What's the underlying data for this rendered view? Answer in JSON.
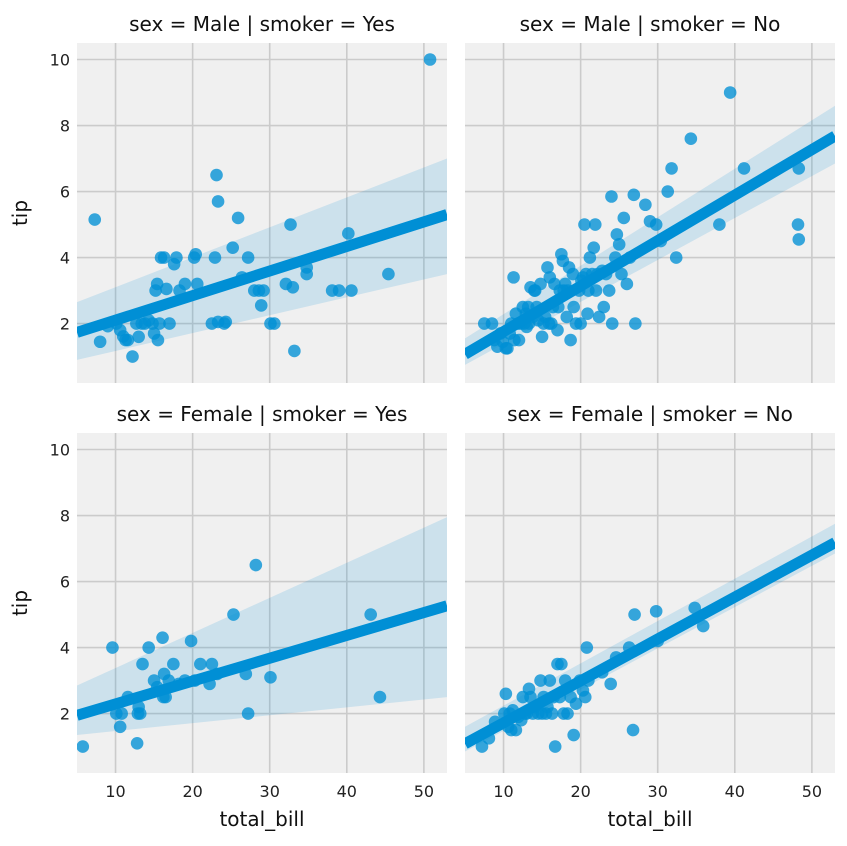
{
  "chart_data": [
    {
      "type": "scatter",
      "title": "sex = Male | smoker = Yes",
      "xlabel": "",
      "ylabel": "tip",
      "xlim": [
        5,
        53
      ],
      "ylim": [
        0.2,
        10.5
      ],
      "xticks": [
        10,
        20,
        30,
        40,
        50
      ],
      "yticks": [
        2,
        4,
        6,
        8,
        10
      ],
      "show_xticklabels": false,
      "show_yticklabels": true,
      "grid": true,
      "regression": {
        "intercept": 1.36,
        "slope": 0.0744,
        "ci_low_start": 0.9,
        "ci_high_start": 2.65,
        "ci_low_end": 3.5,
        "ci_high_end": 7.0
      },
      "series": [
        {
          "x": [
            7.3,
            8.0,
            9.0,
            10.1,
            10.6,
            11.0,
            11.3,
            11.6,
            12.2,
            12.7,
            13.0,
            13.4,
            13.8,
            14.3,
            14.8,
            15.0,
            15.2,
            15.4,
            15.5,
            15.7,
            15.9,
            16.3,
            16.6,
            17.0,
            17.6,
            17.9,
            18.3,
            19.0,
            20.2,
            20.4,
            20.6,
            22.5,
            22.9,
            23.1,
            23.3,
            23.3,
            24.1,
            24.3,
            25.2,
            25.9,
            26.4,
            27.2,
            28.0,
            28.6,
            28.9,
            29.2,
            30.1,
            30.6,
            32.1,
            32.7,
            33.0,
            33.2,
            34.8,
            34.8,
            38.1,
            39.0,
            40.2,
            40.6,
            45.4,
            50.8
          ],
          "y": [
            5.15,
            1.45,
            1.92,
            2.0,
            1.8,
            1.61,
            1.5,
            1.5,
            1.0,
            2.0,
            1.6,
            2.0,
            2.0,
            2.1,
            2.0,
            1.7,
            3.0,
            3.2,
            1.5,
            2.0,
            4.0,
            4.0,
            3.05,
            2.0,
            3.8,
            4.0,
            3.0,
            3.2,
            4.0,
            4.1,
            3.2,
            2.0,
            4.0,
            6.5,
            5.7,
            2.05,
            2.0,
            2.05,
            4.3,
            5.2,
            3.4,
            4.0,
            3.0,
            3.0,
            2.55,
            3.0,
            2.0,
            2.0,
            3.2,
            5.0,
            3.1,
            1.17,
            3.5,
            3.7,
            3.0,
            3.0,
            4.73,
            3.0,
            3.5,
            10.0
          ]
        }
      ]
    },
    {
      "type": "scatter",
      "title": "sex = Male | smoker = No",
      "xlabel": "",
      "ylabel": "",
      "xlim": [
        5,
        53
      ],
      "ylim": [
        0.2,
        10.5
      ],
      "xticks": [
        10,
        20,
        30,
        40,
        50
      ],
      "yticks": [
        2,
        4,
        6,
        8,
        10
      ],
      "show_xticklabels": false,
      "show_yticklabels": false,
      "grid": true,
      "regression": {
        "intercept": 0.38,
        "slope": 0.1378,
        "ci_low_start": 0.75,
        "ci_high_start": 1.55,
        "ci_low_end": 6.85,
        "ci_high_end": 8.6
      },
      "series": [
        {
          "x": [
            7.5,
            8.5,
            8.8,
            9.2,
            9.6,
            9.9,
            10.3,
            10.5,
            10.8,
            11.0,
            11.3,
            11.4,
            11.6,
            11.9,
            12.0,
            12.3,
            12.5,
            12.7,
            12.9,
            13.0,
            13.2,
            13.3,
            13.5,
            13.8,
            14.0,
            14.1,
            14.3,
            14.5,
            14.8,
            15.0,
            15.2,
            15.4,
            15.7,
            15.9,
            16.0,
            16.2,
            16.4,
            16.6,
            17.0,
            17.1,
            17.3,
            17.5,
            17.7,
            17.8,
            18.0,
            18.2,
            18.3,
            18.5,
            18.7,
            19.0,
            19.1,
            19.4,
            19.8,
            20.0,
            20.1,
            20.3,
            20.5,
            20.7,
            20.9,
            21.0,
            21.2,
            21.5,
            21.7,
            21.9,
            22.0,
            22.2,
            22.4,
            22.8,
            23.0,
            23.3,
            23.7,
            24.0,
            24.1,
            24.5,
            24.7,
            25.0,
            25.3,
            25.6,
            26.0,
            26.4,
            26.9,
            27.1,
            28.4,
            29.0,
            29.8,
            30.4,
            31.3,
            31.8,
            32.4,
            34.3,
            38.0,
            39.4,
            41.2,
            48.2,
            48.3,
            48.3
          ],
          "y": [
            2.0,
            2.0,
            1.5,
            1.3,
            1.7,
            1.45,
            1.25,
            1.25,
            1.7,
            2.0,
            3.4,
            1.5,
            2.3,
            2.0,
            1.5,
            2.0,
            2.5,
            2.0,
            2.3,
            1.9,
            2.5,
            2.0,
            3.1,
            2.2,
            3.0,
            3.0,
            2.5,
            2.1,
            3.2,
            1.6,
            2.0,
            2.2,
            3.7,
            2.0,
            3.4,
            2.0,
            2.5,
            3.2,
            1.8,
            2.5,
            3.0,
            4.1,
            3.9,
            3.0,
            3.2,
            2.2,
            3.0,
            3.7,
            1.5,
            3.5,
            2.5,
            2.0,
            3.0,
            2.0,
            3.3,
            3.4,
            5.0,
            3.5,
            2.3,
            3.0,
            4.0,
            3.5,
            4.3,
            5.0,
            3.0,
            3.5,
            2.2,
            3.6,
            2.5,
            3.5,
            3.0,
            5.85,
            2.0,
            4.0,
            4.7,
            4.4,
            3.5,
            5.2,
            3.2,
            4.0,
            5.9,
            2.0,
            5.6,
            5.1,
            5.0,
            4.5,
            6.0,
            6.7,
            4.0,
            7.6,
            5.0,
            9.0,
            6.7,
            5.0,
            4.55,
            6.7
          ]
        }
      ]
    },
    {
      "type": "scatter",
      "title": "sex = Female | smoker = Yes",
      "xlabel": "total_bill",
      "ylabel": "tip",
      "xlim": [
        5,
        53
      ],
      "ylim": [
        0.2,
        10.5
      ],
      "xticks": [
        10,
        20,
        30,
        40,
        50
      ],
      "yticks": [
        2,
        4,
        6,
        8,
        10
      ],
      "show_xticklabels": true,
      "show_yticklabels": true,
      "grid": true,
      "regression": {
        "intercept": 1.6,
        "slope": 0.0692,
        "ci_low_start": 1.35,
        "ci_high_start": 2.85,
        "ci_low_end": 2.5,
        "ci_high_end": 7.95
      },
      "series": [
        {
          "x": [
            5.75,
            9.6,
            10.1,
            10.6,
            10.8,
            11.6,
            12.8,
            12.9,
            13.0,
            13.2,
            13.5,
            14.3,
            15.0,
            15.4,
            16.1,
            16.2,
            16.3,
            16.5,
            16.9,
            17.5,
            18.2,
            19.0,
            19.8,
            20.3,
            21.0,
            22.2,
            22.5,
            23.2,
            25.3,
            26.9,
            27.2,
            28.2,
            30.1,
            43.1,
            44.3
          ],
          "y": [
            1.0,
            4.0,
            2.0,
            1.6,
            2.0,
            2.5,
            1.1,
            2.0,
            2.2,
            2.0,
            3.5,
            4.0,
            3.0,
            2.8,
            4.3,
            2.5,
            3.2,
            2.5,
            3.0,
            3.5,
            2.9,
            3.0,
            4.2,
            3.0,
            3.5,
            2.9,
            3.5,
            3.2,
            5.0,
            3.2,
            2.0,
            6.5,
            3.1,
            5.0,
            2.5
          ]
        }
      ]
    },
    {
      "type": "scatter",
      "title": "sex = Female | smoker = No",
      "xlabel": "total_bill",
      "ylabel": "",
      "xlim": [
        5,
        53
      ],
      "ylim": [
        0.2,
        10.5
      ],
      "xticks": [
        10,
        20,
        30,
        40,
        50
      ],
      "yticks": [
        2,
        4,
        6,
        8,
        10
      ],
      "show_xticklabels": true,
      "show_yticklabels": false,
      "grid": true,
      "regression": {
        "intercept": 0.45,
        "slope": 0.127,
        "ci_low_start": 0.85,
        "ci_high_start": 1.6,
        "ci_low_end": 6.85,
        "ci_high_end": 7.75
      },
      "series": [
        {
          "x": [
            7.2,
            8.1,
            8.9,
            10.1,
            10.3,
            10.6,
            10.8,
            11.0,
            11.2,
            11.6,
            11.9,
            12.3,
            12.5,
            12.8,
            13.0,
            13.3,
            13.5,
            13.8,
            14.1,
            14.5,
            14.8,
            15.0,
            15.2,
            15.5,
            15.7,
            16.0,
            16.3,
            16.5,
            16.7,
            17.0,
            17.3,
            17.5,
            17.8,
            18.0,
            18.3,
            18.7,
            19.1,
            19.4,
            19.9,
            20.3,
            20.6,
            20.8,
            21.0,
            22.8,
            23.9,
            24.6,
            26.3,
            26.8,
            27.0,
            29.8,
            30.0,
            34.8,
            35.9
          ],
          "y": [
            1.0,
            1.25,
            1.75,
            2.0,
            2.6,
            1.6,
            2.0,
            1.5,
            2.1,
            1.5,
            1.9,
            1.8,
            2.5,
            2.0,
            2.0,
            2.75,
            2.5,
            2.0,
            2.2,
            2.0,
            3.0,
            2.0,
            2.5,
            2.0,
            2.2,
            3.0,
            2.0,
            2.5,
            1.0,
            3.5,
            2.5,
            3.5,
            2.0,
            3.0,
            2.0,
            2.5,
            1.35,
            2.3,
            3.0,
            2.7,
            2.5,
            4.0,
            3.0,
            3.25,
            2.9,
            3.7,
            4.0,
            1.5,
            5.0,
            5.1,
            4.2,
            5.2,
            4.65
          ]
        }
      ]
    }
  ]
}
